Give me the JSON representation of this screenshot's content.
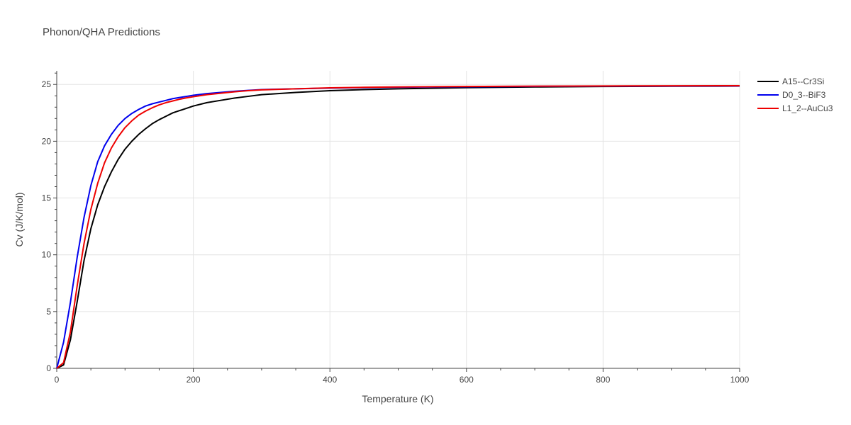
{
  "chart_data": {
    "type": "line",
    "title": "Phonon/QHA Predictions",
    "xlabel": "Temperature (K)",
    "ylabel": "Cv (J/K/mol)",
    "xlim": [
      0,
      1000
    ],
    "ylim": [
      0,
      26.2
    ],
    "xticks": [
      0,
      200,
      400,
      600,
      800,
      1000
    ],
    "xtick_labels": [
      "0",
      "200",
      "400",
      "600",
      "800",
      "1000"
    ],
    "yticks": [
      0,
      5,
      10,
      15,
      20,
      25
    ],
    "ytick_labels": [
      "0",
      "5",
      "10",
      "15",
      "20",
      "25"
    ],
    "grid": true,
    "legend_position": "top-right",
    "series": [
      {
        "name": "A15--Cr3Si",
        "color": "#000000",
        "x": [
          0,
          10,
          20,
          30,
          40,
          50,
          60,
          70,
          80,
          90,
          100,
          110,
          120,
          130,
          140,
          150,
          160,
          170,
          180,
          190,
          200,
          220,
          240,
          260,
          280,
          300,
          350,
          400,
          450,
          500,
          600,
          700,
          800,
          900,
          1000
        ],
        "y": [
          0,
          0.3,
          2.5,
          5.9,
          9.5,
          12.3,
          14.4,
          16.0,
          17.3,
          18.4,
          19.3,
          20.0,
          20.6,
          21.1,
          21.55,
          21.9,
          22.2,
          22.5,
          22.7,
          22.9,
          23.1,
          23.4,
          23.6,
          23.8,
          23.95,
          24.1,
          24.3,
          24.45,
          24.55,
          24.62,
          24.72,
          24.78,
          24.82,
          24.84,
          24.86
        ]
      },
      {
        "name": "D0_3--BiF3",
        "color": "#0000ee",
        "x": [
          0,
          10,
          20,
          30,
          40,
          50,
          60,
          70,
          80,
          90,
          100,
          110,
          120,
          130,
          140,
          150,
          160,
          170,
          180,
          190,
          200,
          220,
          240,
          260,
          280,
          300,
          350,
          400,
          450,
          500,
          600,
          700,
          800,
          900,
          1000
        ],
        "y": [
          0,
          2.3,
          5.8,
          9.8,
          13.3,
          16.1,
          18.2,
          19.6,
          20.6,
          21.4,
          22.0,
          22.45,
          22.8,
          23.1,
          23.3,
          23.45,
          23.6,
          23.75,
          23.85,
          23.95,
          24.05,
          24.2,
          24.3,
          24.4,
          24.48,
          24.55,
          24.62,
          24.68,
          24.72,
          24.76,
          24.8,
          24.83,
          24.85,
          24.86,
          24.87
        ]
      },
      {
        "name": "L1_2--AuCu3",
        "color": "#ee0000",
        "x": [
          0,
          10,
          20,
          30,
          40,
          50,
          60,
          70,
          80,
          90,
          100,
          110,
          120,
          130,
          140,
          150,
          160,
          170,
          180,
          190,
          200,
          220,
          240,
          260,
          280,
          300,
          350,
          400,
          450,
          500,
          600,
          700,
          800,
          900,
          1000
        ],
        "y": [
          0,
          0.5,
          3.2,
          7.3,
          11.0,
          14.0,
          16.3,
          18.1,
          19.4,
          20.4,
          21.2,
          21.8,
          22.3,
          22.65,
          22.95,
          23.2,
          23.4,
          23.55,
          23.7,
          23.82,
          23.92,
          24.1,
          24.23,
          24.35,
          24.45,
          24.52,
          24.62,
          24.7,
          24.75,
          24.78,
          24.82,
          24.85,
          24.87,
          24.88,
          24.89
        ]
      }
    ]
  }
}
